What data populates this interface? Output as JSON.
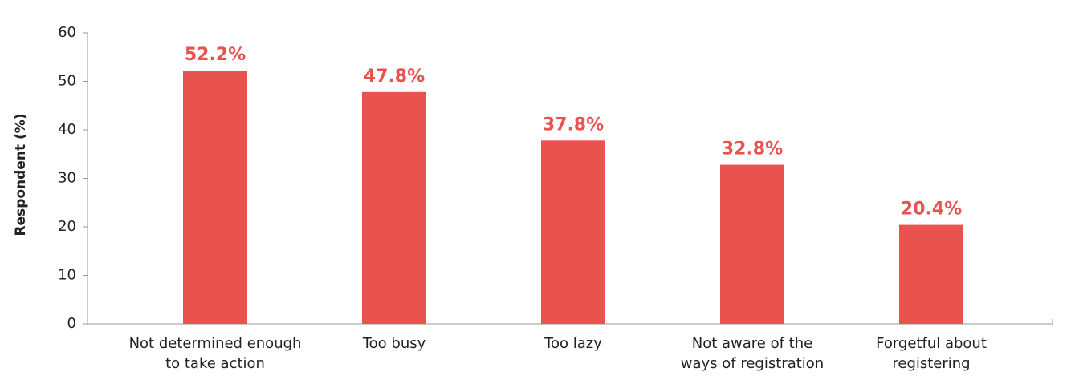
{
  "chart_data": {
    "type": "bar",
    "y_label": "Respondent (%)",
    "categories": [
      [
        "Not determined enough",
        "to take action"
      ],
      [
        "Too busy"
      ],
      [
        "Too lazy"
      ],
      [
        "Not aware of the",
        "ways of registration"
      ],
      [
        "Forgetful about",
        "registering"
      ]
    ],
    "values": [
      52.2,
      47.8,
      37.8,
      32.8,
      20.4
    ],
    "value_labels": [
      "52.2%",
      "47.8%",
      "37.8%",
      "32.8%",
      "20.4%"
    ],
    "color": "#e8524f",
    "ylim": [
      0,
      60
    ],
    "yticks": [
      0,
      10,
      20,
      30,
      40,
      50,
      60
    ],
    "grid": false
  }
}
